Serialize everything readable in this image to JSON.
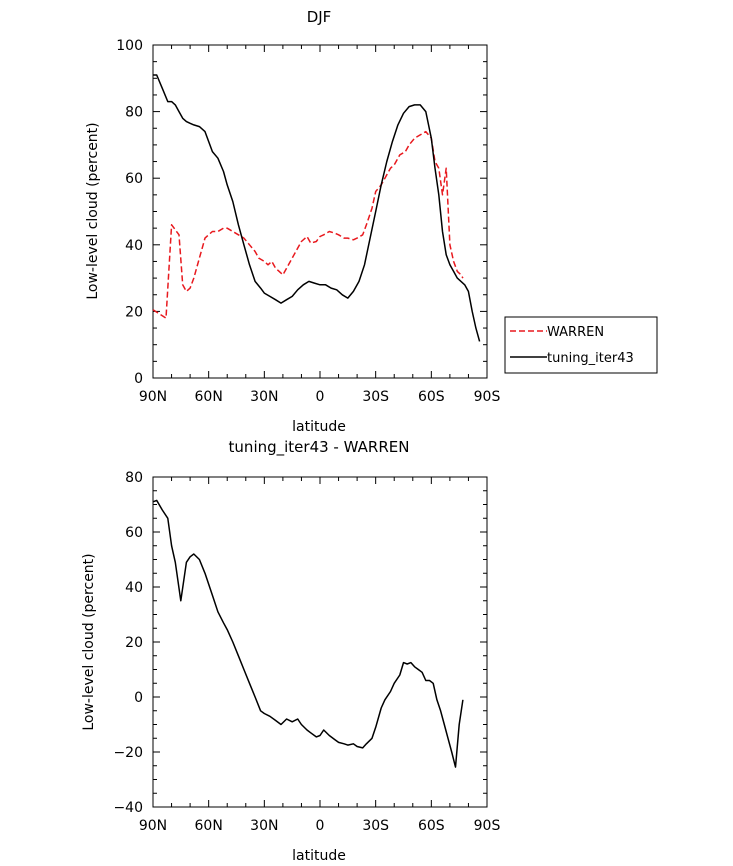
{
  "chart_data": [
    {
      "type": "line",
      "title": "DJF",
      "xlabel": "latitude",
      "ylabel": "Low-level cloud (percent)",
      "xlim": [
        90,
        -90
      ],
      "ylim": [
        0,
        100
      ],
      "xtick_values": [
        90,
        60,
        30,
        0,
        -30,
        -60,
        -90
      ],
      "xtick_labels": [
        "90N",
        "60N",
        "30N",
        "0",
        "30S",
        "60S",
        "90S"
      ],
      "ytick_values": [
        0,
        20,
        40,
        60,
        80,
        100
      ],
      "ytick_labels": [
        "0",
        "20",
        "40",
        "60",
        "80",
        "100"
      ],
      "legend": "outside-right",
      "series": [
        {
          "name": "WARREN",
          "color": "#e8191e",
          "dash": "dashed",
          "x": [
            90,
            83,
            80,
            76,
            74,
            72,
            70,
            68,
            65,
            62,
            60,
            58,
            55,
            52,
            50,
            47,
            44,
            41,
            38,
            35,
            33,
            30,
            28,
            26,
            24,
            22,
            20,
            17,
            14,
            12,
            10,
            7,
            5,
            2,
            0,
            -2,
            -5,
            -8,
            -10,
            -13,
            -15,
            -18,
            -20,
            -23,
            -25,
            -28,
            -30,
            -33,
            -35,
            -38,
            -40,
            -43,
            -46,
            -48,
            -51,
            -54,
            -57,
            -60,
            -62,
            -64,
            -66,
            -68,
            -70,
            -72,
            -74,
            -76,
            -77
          ],
          "y": [
            20.5,
            18,
            46,
            43,
            28,
            26,
            27,
            30,
            36,
            42,
            43,
            44,
            44,
            45,
            45,
            44,
            43,
            42,
            40,
            38,
            36,
            35,
            34,
            35,
            33,
            32,
            31,
            34,
            37,
            39,
            41,
            42.5,
            40.5,
            41,
            42.5,
            43,
            44,
            43.5,
            43,
            42,
            42,
            41.5,
            42,
            43,
            46,
            51,
            56,
            58,
            60,
            63,
            64,
            67,
            68,
            70,
            72,
            73,
            74,
            72,
            65,
            63,
            55,
            63,
            40,
            35,
            32,
            31,
            30
          ]
        },
        {
          "name": "tuning_iter43",
          "color": "#000000",
          "dash": "solid",
          "x": [
            90,
            88,
            85,
            82,
            80,
            78,
            76,
            74,
            72,
            70,
            68,
            65,
            62,
            60,
            58,
            55,
            52,
            50,
            47,
            44,
            41,
            38,
            35,
            32,
            30,
            27,
            24,
            21,
            18,
            15,
            12,
            9,
            6,
            3,
            0,
            -3,
            -6,
            -9,
            -12,
            -15,
            -18,
            -21,
            -24,
            -27,
            -30,
            -33,
            -36,
            -39,
            -42,
            -45,
            -48,
            -51,
            -54,
            -57,
            -60,
            -62,
            -64,
            -66,
            -68,
            -70,
            -72,
            -74,
            -76,
            -78,
            -80,
            -82,
            -84,
            -86
          ],
          "y": [
            91,
            91,
            87,
            83,
            83,
            82,
            80,
            78,
            77,
            76.5,
            76,
            75.5,
            74,
            71,
            68,
            66,
            62,
            58,
            53,
            46,
            40,
            34,
            29,
            27,
            25.5,
            24.5,
            23.5,
            22.5,
            23.5,
            24.5,
            26.5,
            28,
            29,
            28.5,
            28,
            28,
            27,
            26.5,
            25,
            24,
            26,
            29,
            34,
            42,
            50,
            58,
            65,
            71,
            76,
            79.5,
            81.5,
            82,
            82,
            80,
            72,
            63,
            55,
            44,
            37,
            34,
            32,
            30,
            29,
            28,
            26,
            20,
            15,
            11
          ]
        }
      ]
    },
    {
      "type": "line",
      "title": "tuning_iter43 - WARREN",
      "xlabel": "latitude",
      "ylabel": "Low-level cloud (percent)",
      "xlim": [
        90,
        -90
      ],
      "ylim": [
        -40,
        80
      ],
      "xtick_values": [
        90,
        60,
        30,
        0,
        -30,
        -60,
        -90
      ],
      "xtick_labels": [
        "90N",
        "60N",
        "30N",
        "0",
        "30S",
        "60S",
        "90S"
      ],
      "ytick_values": [
        -40,
        -20,
        0,
        20,
        40,
        60,
        80
      ],
      "ytick_labels": [
        "−40",
        "−20",
        "0",
        "20",
        "40",
        "60",
        "80"
      ],
      "series": [
        {
          "color": "#000000",
          "dash": "solid",
          "x": [
            90,
            88,
            85,
            82,
            80,
            78,
            75,
            72,
            70,
            68,
            65,
            62,
            60,
            58,
            55,
            52,
            50,
            47,
            44,
            41,
            38,
            35,
            32,
            30,
            27,
            24,
            21,
            18,
            15,
            12,
            10,
            7,
            5,
            2,
            0,
            -2,
            -5,
            -8,
            -10,
            -13,
            -15,
            -18,
            -20,
            -23,
            -25,
            -28,
            -30,
            -33,
            -35,
            -38,
            -40,
            -43,
            -45,
            -47,
            -49,
            -51,
            -53,
            -55,
            -57,
            -59,
            -61,
            -63,
            -65,
            -67,
            -69,
            -71,
            -73,
            -75,
            -77
          ],
          "y": [
            71,
            71.5,
            68,
            65,
            55,
            49,
            35,
            49,
            51,
            52,
            50,
            45,
            41,
            37,
            31,
            27,
            24.5,
            20,
            15,
            10,
            5,
            0,
            -5,
            -6,
            -7,
            -8.5,
            -10,
            -8,
            -9,
            -8,
            -10,
            -12,
            -13,
            -14.5,
            -14,
            -12,
            -14,
            -15.5,
            -16.5,
            -17,
            -17.5,
            -17,
            -18,
            -18.5,
            -17,
            -15,
            -11,
            -4,
            -1,
            2,
            5,
            8,
            12.5,
            12,
            12.5,
            11,
            10,
            9,
            6,
            6,
            5,
            -1,
            -5,
            -10,
            -15,
            -20,
            -25.5,
            -10,
            -1
          ]
        }
      ]
    }
  ]
}
